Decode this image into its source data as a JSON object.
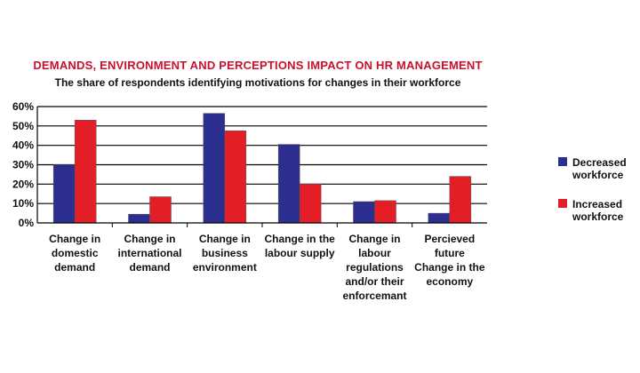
{
  "chart_data": {
    "type": "bar",
    "title": "DEMANDS, ENVIRONMENT AND PERCEPTIONS IMPACT ON HR MANAGEMENT",
    "subtitle": "The share of respondents identifying motivations for changes in their workforce",
    "xlabel": "",
    "ylabel": "",
    "ylim": [
      0,
      60
    ],
    "yticks": [
      "0%",
      "10%",
      "20%",
      "30%",
      "40%",
      "50%",
      "60%"
    ],
    "grid": true,
    "legend_position": "right",
    "categories": [
      [
        "Change in",
        "domestic",
        "demand"
      ],
      [
        "Change in",
        "international",
        "demand"
      ],
      [
        "Change in",
        "business",
        "environment"
      ],
      [
        "Change in the",
        "labour supply"
      ],
      [
        "Change in",
        "labour",
        "regulations",
        "and/or their",
        "enforcemant"
      ],
      [
        "Percieved",
        "future",
        "Change in the",
        "economy"
      ]
    ],
    "series": [
      {
        "name": [
          "Decreased",
          "workforce"
        ],
        "color": "#2b2d8f",
        "values": [
          30,
          4.5,
          56.5,
          40.5,
          11,
          5
        ]
      },
      {
        "name": [
          "Increased",
          "workforce"
        ],
        "color": "#e41e26",
        "values": [
          53,
          13.5,
          47.5,
          20,
          11.5,
          24
        ]
      }
    ]
  }
}
